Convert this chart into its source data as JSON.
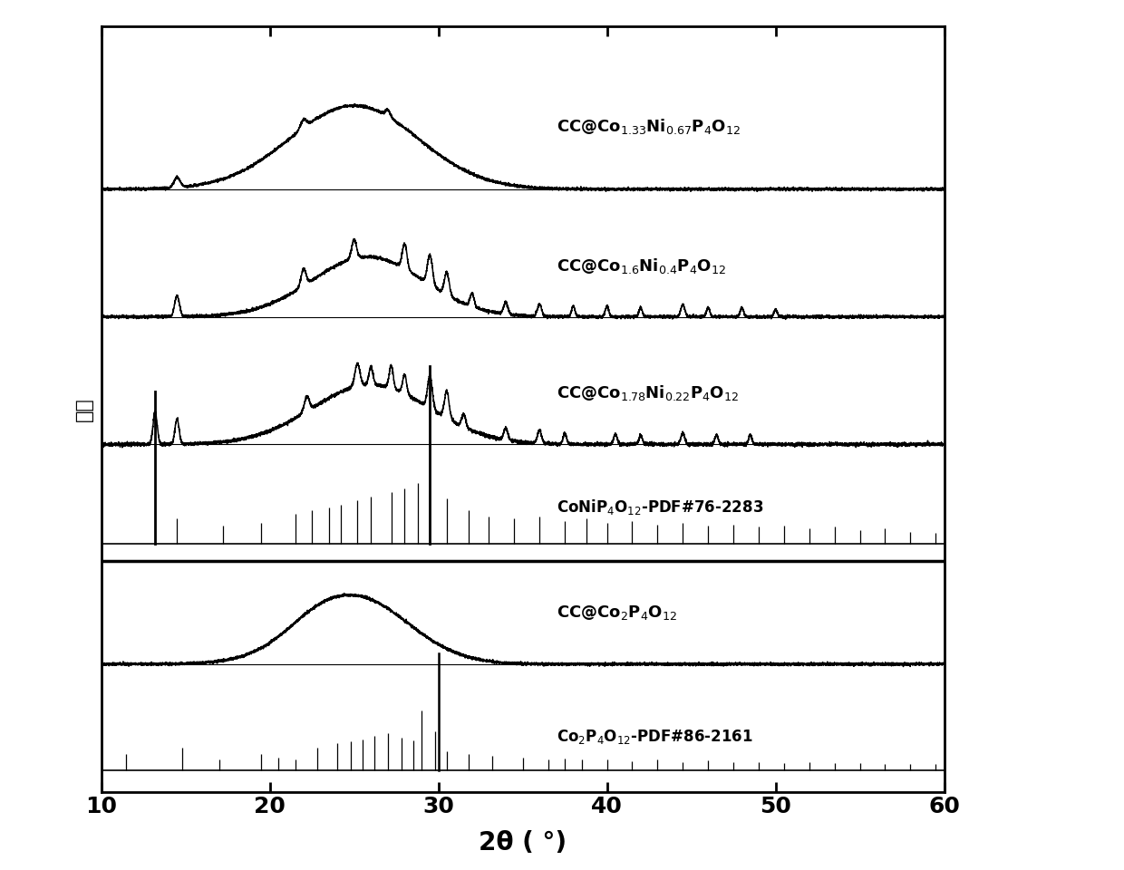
{
  "x_min": 10,
  "x_max": 60,
  "xlabel": "2θ ( °)",
  "ylabel": "强度",
  "background_color": "#ffffff",
  "co2_pdf_peaks": [
    11.5,
    14.8,
    17.0,
    19.5,
    20.5,
    21.5,
    22.8,
    24.0,
    24.8,
    25.5,
    26.2,
    27.0,
    27.8,
    28.5,
    29.0,
    29.8,
    30.5,
    31.8,
    33.2,
    35.0,
    36.5,
    37.5,
    38.5,
    40.0,
    41.5,
    43.0,
    44.5,
    46.0,
    47.5,
    49.0,
    50.5,
    52.0,
    53.5,
    55.0,
    56.5,
    58.0,
    59.5
  ],
  "co2_pdf_h": [
    0.28,
    0.38,
    0.18,
    0.28,
    0.22,
    0.18,
    0.38,
    0.45,
    0.48,
    0.52,
    0.58,
    0.62,
    0.55,
    0.5,
    1.0,
    0.65,
    0.32,
    0.28,
    0.25,
    0.22,
    0.18,
    0.2,
    0.18,
    0.18,
    0.15,
    0.18,
    0.14,
    0.16,
    0.14,
    0.14,
    0.12,
    0.14,
    0.12,
    0.12,
    0.1,
    0.1,
    0.1
  ],
  "coni_pdf_peaks": [
    13.2,
    14.5,
    17.2,
    19.5,
    21.5,
    22.5,
    23.5,
    24.2,
    25.2,
    26.0,
    27.2,
    28.0,
    28.8,
    29.5,
    30.5,
    31.8,
    33.0,
    34.5,
    36.0,
    37.5,
    38.8,
    40.0,
    41.5,
    43.0,
    44.5,
    46.0,
    47.5,
    49.0,
    50.5,
    52.0,
    53.5,
    55.0,
    56.5,
    58.0,
    59.5
  ],
  "coni_pdf_h": [
    0.55,
    0.42,
    0.3,
    0.35,
    0.5,
    0.55,
    0.6,
    0.65,
    0.72,
    0.78,
    0.85,
    0.92,
    1.0,
    0.88,
    0.75,
    0.55,
    0.45,
    0.42,
    0.45,
    0.38,
    0.42,
    0.35,
    0.38,
    0.32,
    0.35,
    0.3,
    0.32,
    0.28,
    0.3,
    0.25,
    0.28,
    0.22,
    0.25,
    0.2,
    0.18
  ]
}
